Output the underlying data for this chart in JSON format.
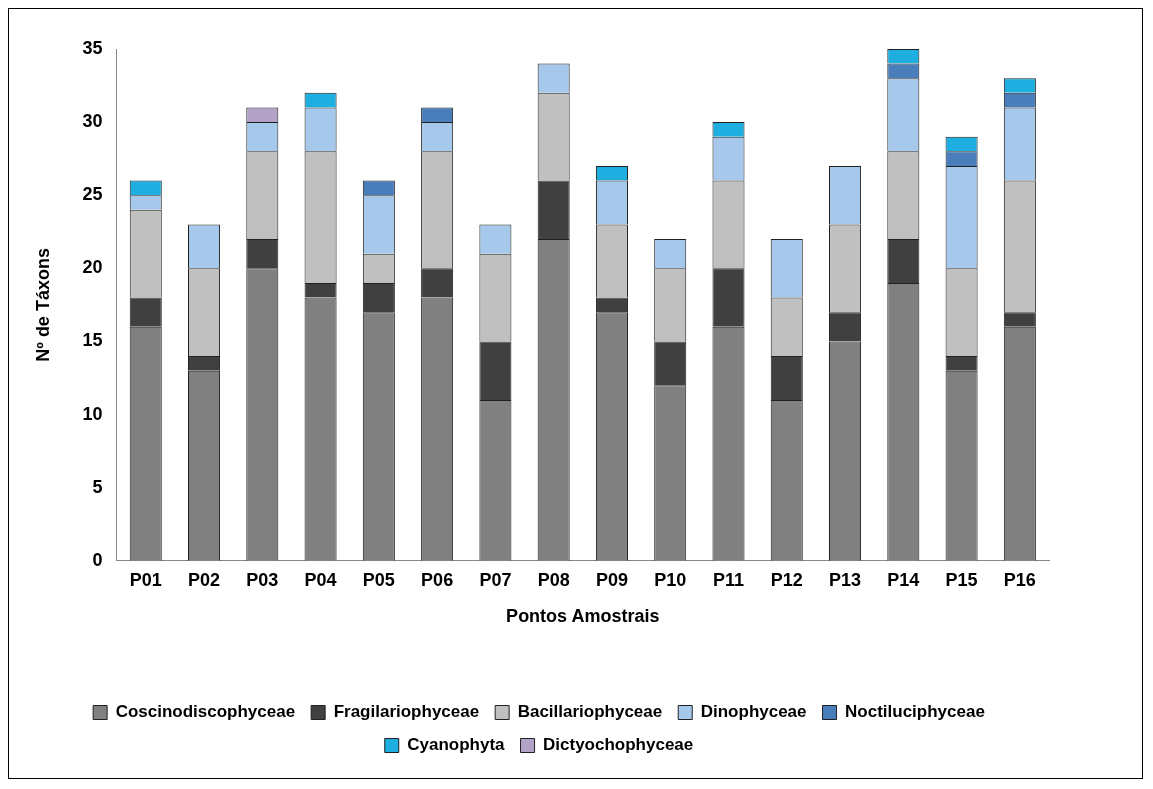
{
  "chart_data": {
    "type": "bar",
    "stacked": true,
    "xlabel": "Pontos Amostrais",
    "ylabel": "Nº de Táxons",
    "categories": [
      "P01",
      "P02",
      "P03",
      "P04",
      "P05",
      "P06",
      "P07",
      "P08",
      "P09",
      "P10",
      "P11",
      "P12",
      "P13",
      "P14",
      "P15",
      "P16"
    ],
    "series": [
      {
        "name": "Coscinodiscophyceae",
        "color": "#808080",
        "values": [
          16,
          13,
          20,
          18,
          17,
          18,
          11,
          22,
          17,
          12,
          16,
          11,
          15,
          19,
          13,
          16
        ]
      },
      {
        "name": "Fragilariophyceae",
        "color": "#404040",
        "values": [
          2,
          1,
          2,
          1,
          2,
          2,
          4,
          4,
          1,
          3,
          4,
          3,
          2,
          3,
          1,
          1
        ]
      },
      {
        "name": "Bacillariophyceae",
        "color": "#c0c0c0",
        "values": [
          6,
          6,
          6,
          9,
          2,
          8,
          6,
          6,
          5,
          5,
          6,
          4,
          6,
          6,
          6,
          9
        ]
      },
      {
        "name": "Dinophyceae",
        "color": "#a6c8ea",
        "values": [
          1,
          3,
          2,
          3,
          4,
          2,
          2,
          2,
          3,
          2,
          3,
          4,
          4,
          5,
          7,
          5
        ]
      },
      {
        "name": "Noctiluciphyceae",
        "color": "#4a7ebb",
        "values": [
          null,
          null,
          null,
          null,
          1,
          1,
          null,
          null,
          null,
          null,
          null,
          null,
          null,
          1,
          1,
          1
        ]
      },
      {
        "name": "Cyanophyta",
        "color": "#1eaee0",
        "values": [
          1,
          null,
          null,
          1,
          null,
          null,
          null,
          null,
          1,
          null,
          1,
          null,
          null,
          1,
          1,
          1
        ]
      },
      {
        "name": "Dictyochophyceae",
        "color": "#b3a2c7",
        "values": [
          null,
          null,
          1,
          null,
          null,
          null,
          null,
          null,
          null,
          null,
          null,
          null,
          null,
          null,
          null,
          null
        ]
      }
    ],
    "ylim": [
      0,
      35
    ],
    "yticks": [
      0,
      5,
      10,
      15,
      20,
      25,
      30,
      35
    ],
    "grid": false,
    "legend": "bottom"
  }
}
